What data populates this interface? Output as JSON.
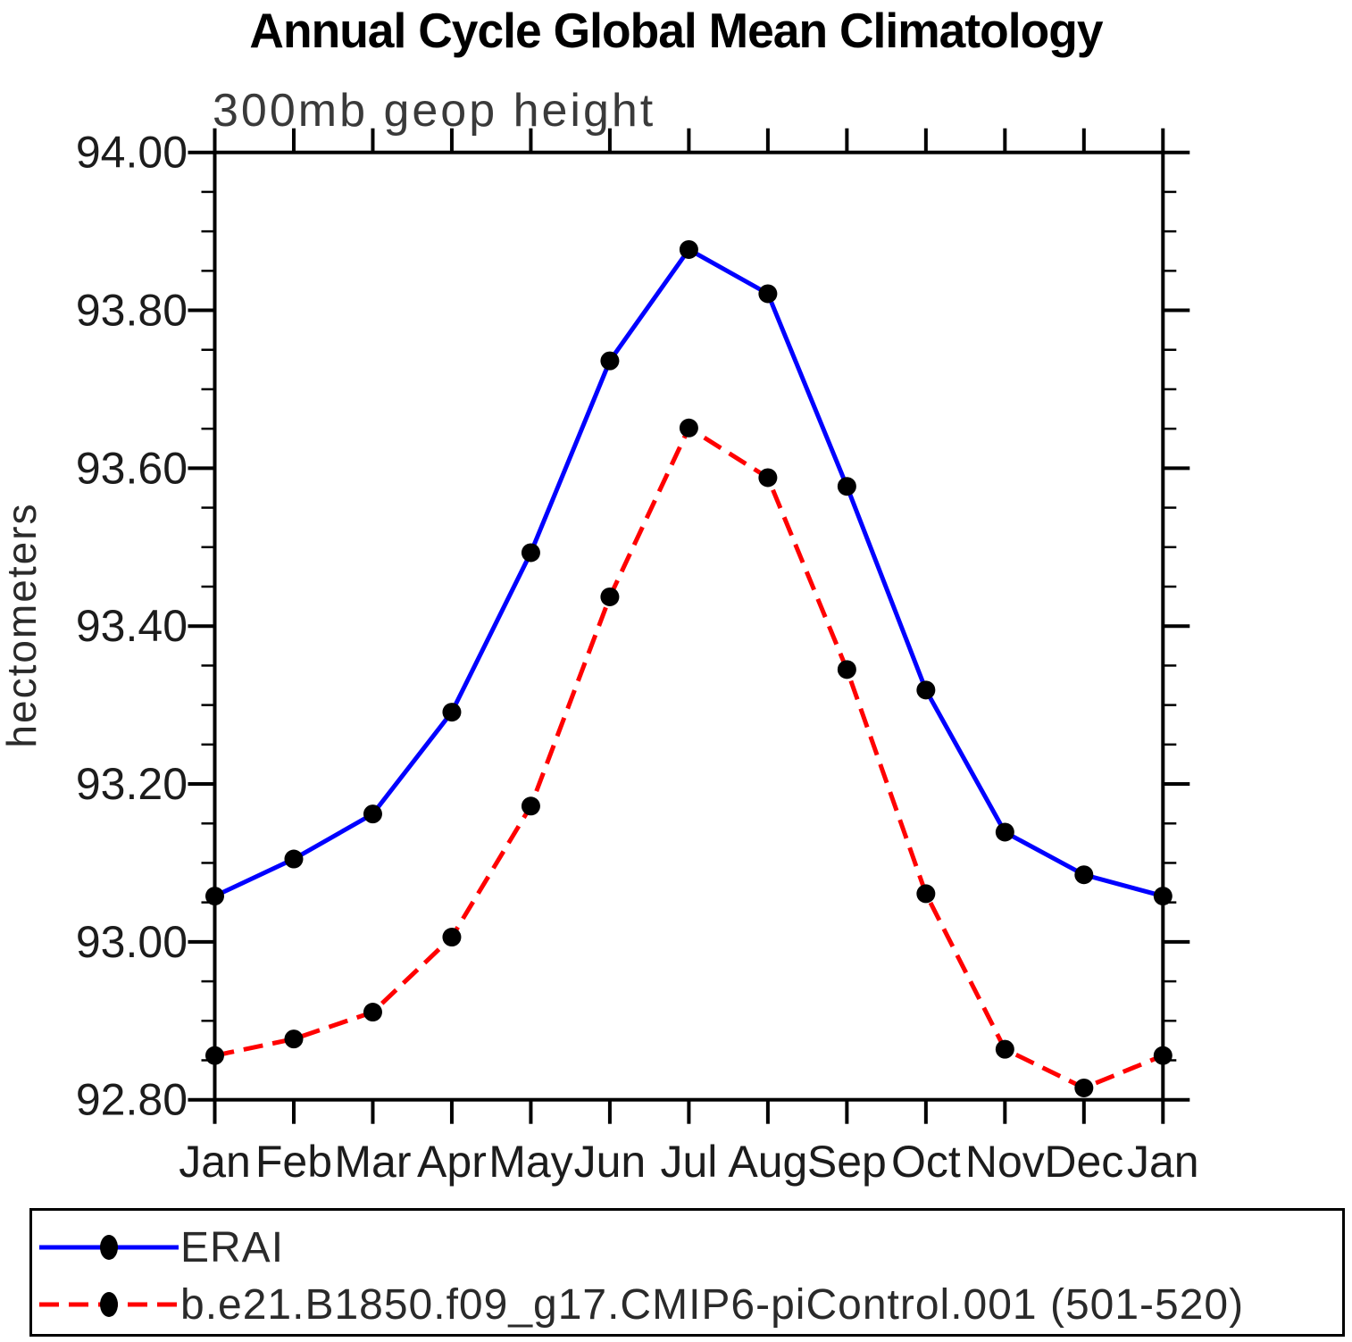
{
  "title": "Annual Cycle Global Mean Climatology",
  "subtitle": "300mb geop height",
  "colors": {
    "erai_line": "#0000ff",
    "model_line": "#ff0000",
    "marker": "#000000",
    "axis": "#000000",
    "text": "#1c1c1c"
  },
  "legend": {
    "items": [
      {
        "label": "ERAI",
        "line_style": "solid",
        "color": "#0000ff"
      },
      {
        "label": "b.e21.B1850.f09_g17.CMIP6-piControl.001 (501-520)",
        "line_style": "dashed",
        "color": "#ff0000"
      }
    ]
  },
  "chart_data": {
    "type": "line",
    "title": "Annual Cycle Global Mean Climatology",
    "subtitle": "300mb geop height",
    "xlabel": "",
    "ylabel": "hectometers",
    "ylim": [
      92.8,
      94.0
    ],
    "y_major_step": 0.2,
    "y_minor_step": 0.05,
    "y_tick_labels": [
      "94.00",
      "93.80",
      "93.60",
      "93.40",
      "93.20",
      "93.00",
      "92.80"
    ],
    "categories": [
      "Jan",
      "Feb",
      "Mar",
      "Apr",
      "May",
      "Jun",
      "Jul",
      "Aug",
      "Sep",
      "Oct",
      "Nov",
      "Dec",
      "Jan"
    ],
    "grid": false,
    "markers": "filled-circle",
    "legend_position": "bottom",
    "series": [
      {
        "name": "ERAI",
        "color": "#0000ff",
        "line": "solid",
        "values": [
          93.058,
          93.105,
          93.162,
          93.291,
          93.493,
          93.736,
          93.877,
          93.821,
          93.577,
          93.319,
          93.139,
          93.085,
          93.058
        ]
      },
      {
        "name": "b.e21.B1850.f09_g17.CMIP6-piControl.001 (501-520)",
        "color": "#ff0000",
        "line": "dashed",
        "values": [
          92.856,
          92.877,
          92.911,
          93.006,
          93.172,
          93.437,
          93.651,
          93.588,
          93.345,
          93.061,
          92.864,
          92.815,
          92.856
        ]
      }
    ]
  }
}
